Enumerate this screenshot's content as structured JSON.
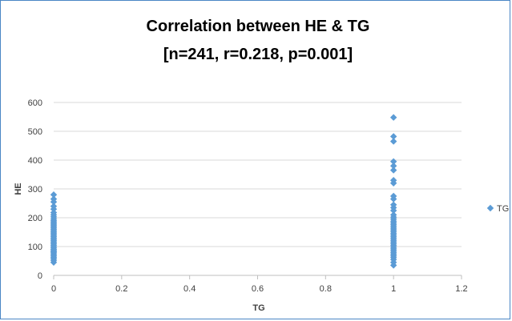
{
  "chart_data": {
    "type": "scatter",
    "title_lines": [
      "Correlation between HE & TG",
      "[n=241, r=0.218, p=0.001]"
    ],
    "xlabel": "TG",
    "ylabel": "HE",
    "xlim": [
      0,
      1.2
    ],
    "ylim": [
      0,
      600
    ],
    "x_ticks": [
      "0",
      "0.2",
      "0.4",
      "0.6",
      "0.8",
      "1",
      "1.2"
    ],
    "y_ticks": [
      "0",
      "100",
      "200",
      "300",
      "400",
      "500",
      "600"
    ],
    "grid": "horizontal",
    "legend_position": "right",
    "marker_color": "#5b9bd5",
    "series": [
      {
        "name": "TG",
        "points": [
          [
            0,
            45
          ],
          [
            0,
            52
          ],
          [
            0,
            58
          ],
          [
            0,
            63
          ],
          [
            0,
            68
          ],
          [
            0,
            73
          ],
          [
            0,
            78
          ],
          [
            0,
            82
          ],
          [
            0,
            86
          ],
          [
            0,
            90
          ],
          [
            0,
            95
          ],
          [
            0,
            100
          ],
          [
            0,
            105
          ],
          [
            0,
            110
          ],
          [
            0,
            115
          ],
          [
            0,
            120
          ],
          [
            0,
            125
          ],
          [
            0,
            130
          ],
          [
            0,
            135
          ],
          [
            0,
            140
          ],
          [
            0,
            145
          ],
          [
            0,
            150
          ],
          [
            0,
            155
          ],
          [
            0,
            160
          ],
          [
            0,
            165
          ],
          [
            0,
            170
          ],
          [
            0,
            175
          ],
          [
            0,
            180
          ],
          [
            0,
            185
          ],
          [
            0,
            190
          ],
          [
            0,
            196
          ],
          [
            0,
            203
          ],
          [
            0,
            210
          ],
          [
            0,
            218
          ],
          [
            0,
            230
          ],
          [
            0,
            240
          ],
          [
            0,
            255
          ],
          [
            0,
            265
          ],
          [
            0,
            280
          ],
          [
            1,
            35
          ],
          [
            1,
            45
          ],
          [
            1,
            55
          ],
          [
            1,
            62
          ],
          [
            1,
            68
          ],
          [
            1,
            74
          ],
          [
            1,
            80
          ],
          [
            1,
            86
          ],
          [
            1,
            92
          ],
          [
            1,
            98
          ],
          [
            1,
            104
          ],
          [
            1,
            110
          ],
          [
            1,
            116
          ],
          [
            1,
            122
          ],
          [
            1,
            128
          ],
          [
            1,
            134
          ],
          [
            1,
            140
          ],
          [
            1,
            146
          ],
          [
            1,
            152
          ],
          [
            1,
            158
          ],
          [
            1,
            164
          ],
          [
            1,
            170
          ],
          [
            1,
            176
          ],
          [
            1,
            182
          ],
          [
            1,
            188
          ],
          [
            1,
            195
          ],
          [
            1,
            202
          ],
          [
            1,
            210
          ],
          [
            1,
            225
          ],
          [
            1,
            235
          ],
          [
            1,
            245
          ],
          [
            1,
            265
          ],
          [
            1,
            275
          ],
          [
            1,
            320
          ],
          [
            1,
            330
          ],
          [
            1,
            365
          ],
          [
            1,
            380
          ],
          [
            1,
            395
          ],
          [
            1,
            465
          ],
          [
            1,
            482
          ],
          [
            1,
            548
          ]
        ]
      }
    ]
  }
}
